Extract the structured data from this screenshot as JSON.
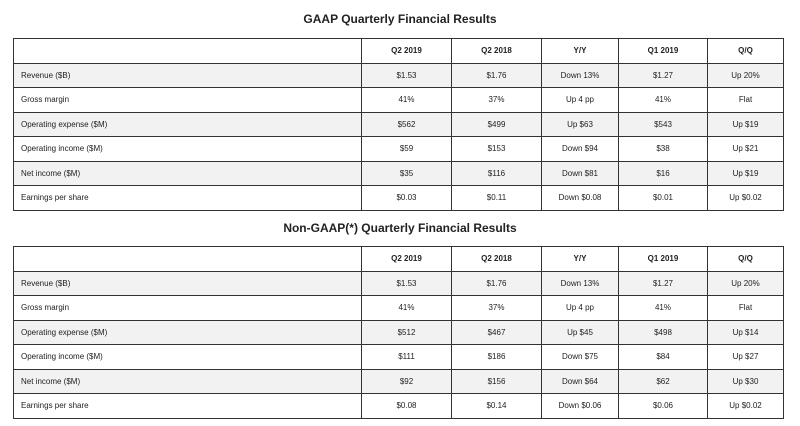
{
  "gaap": {
    "title": "GAAP Quarterly Financial Results",
    "headers": [
      "",
      "Q2 2019",
      "Q2 2018",
      "Y/Y",
      "Q1 2019",
      "Q/Q"
    ],
    "rows": [
      [
        "Revenue ($B)",
        "$1.53",
        "$1.76",
        "Down 13%",
        "$1.27",
        "Up 20%"
      ],
      [
        "Gross margin",
        "41%",
        "37%",
        "Up 4 pp",
        "41%",
        "Flat"
      ],
      [
        "Operating expense ($M)",
        "$562",
        "$499",
        "Up $63",
        "$543",
        "Up $19"
      ],
      [
        "Operating income ($M)",
        "$59",
        "$153",
        "Down $94",
        "$38",
        "Up $21"
      ],
      [
        "Net income ($M)",
        "$35",
        "$116",
        "Down $81",
        "$16",
        "Up $19"
      ],
      [
        "Earnings per share",
        "$0.03",
        "$0.11",
        "Down $0.08",
        "$0.01",
        "Up $0.02"
      ]
    ]
  },
  "nongaap": {
    "title": "Non-GAAP(*) Quarterly Financial Results",
    "headers": [
      "",
      "Q2 2019",
      "Q2 2018",
      "Y/Y",
      "Q1 2019",
      "Q/Q"
    ],
    "rows": [
      [
        "Revenue ($B)",
        "$1.53",
        "$1.76",
        "Down 13%",
        "$1.27",
        "Up 20%"
      ],
      [
        "Gross margin",
        "41%",
        "37%",
        "Up 4 pp",
        "41%",
        "Flat"
      ],
      [
        "Operating expense ($M)",
        "$512",
        "$467",
        "Up $45",
        "$498",
        "Up $14"
      ],
      [
        "Operating income ($M)",
        "$111",
        "$186",
        "Down $75",
        "$84",
        "Up $27"
      ],
      [
        "Net income ($M)",
        "$92",
        "$156",
        "Down $64",
        "$62",
        "Up $30"
      ],
      [
        "Earnings per share",
        "$0.08",
        "$0.14",
        "Down $0.06",
        "$0.06",
        "Up $0.02"
      ]
    ]
  }
}
